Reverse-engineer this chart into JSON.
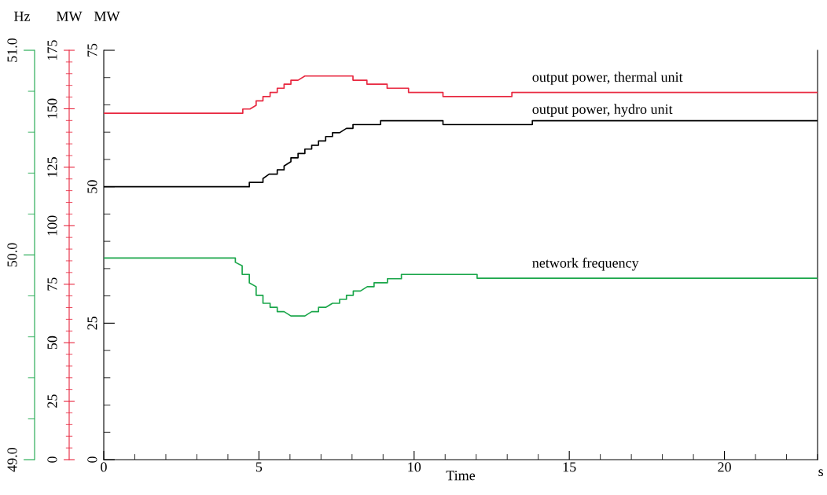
{
  "chart_data": {
    "type": "line",
    "xlabel": "Time",
    "ylabel": "MW",
    "y2label": "MW",
    "y3label": "Hz",
    "annotations": [
      "s"
    ],
    "xlim": [
      0,
      23
    ],
    "xticks": [
      0,
      5,
      10,
      15,
      20
    ],
    "ylim": [
      0,
      75
    ],
    "yticks": [
      0,
      25,
      50,
      75
    ],
    "y2lim": [
      0,
      175
    ],
    "y2ticks": [
      0,
      25,
      50,
      75,
      100,
      125,
      150,
      175
    ],
    "y3lim": [
      49,
      51
    ],
    "y3ticks": [
      {
        "value": 49,
        "label": "49.0"
      },
      {
        "value": 50,
        "label": "50.0"
      },
      {
        "value": 51,
        "label": "51.0"
      }
    ],
    "grid": false,
    "legend": false,
    "marker": "none",
    "line_style": "solid",
    "series": [
      {
        "name": "output power, thermal unit",
        "color": "#e8273f",
        "axis": "y2",
        "x": [
          0,
          4.48,
          4.48,
          4.71,
          4.91,
          4.91,
          5.13,
          5.13,
          5.36,
          5.36,
          5.59,
          5.59,
          5.81,
          5.81,
          6.03,
          6.03,
          6.26,
          6.48,
          8.03,
          8.03,
          8.48,
          8.48,
          9.13,
          9.13,
          9.82,
          9.82,
          10.93,
          10.93,
          13.15,
          13.15,
          23
        ],
        "values": [
          148.1,
          148.1,
          149.9,
          149.9,
          151.5,
          153.4,
          153.4,
          155.2,
          155.2,
          157.0,
          157.0,
          158.8,
          158.8,
          160.5,
          160.5,
          162.2,
          162.2,
          164.0,
          164.0,
          162.2,
          162.2,
          160.5,
          160.5,
          158.8,
          158.8,
          157.0,
          157.0,
          155.2,
          155.2,
          157.0,
          157.0
        ]
      },
      {
        "name": "output power, hydro unit",
        "color": "#000000",
        "axis": "y",
        "x": [
          0,
          4.69,
          4.69,
          5.13,
          5.13,
          5.33,
          5.59,
          5.59,
          5.81,
          5.81,
          6.03,
          6.03,
          6.26,
          6.26,
          6.48,
          6.48,
          6.7,
          6.7,
          6.92,
          6.92,
          7.15,
          7.15,
          7.37,
          7.37,
          7.6,
          7.82,
          8.03,
          8.03,
          8.92,
          8.92,
          10.93,
          10.93,
          13.81,
          13.81,
          23
        ],
        "values": [
          50.0,
          50.0,
          50.8,
          50.8,
          51.5,
          52.3,
          52.3,
          53.1,
          53.1,
          53.8,
          54.6,
          55.3,
          55.3,
          56.1,
          56.1,
          56.9,
          56.9,
          57.6,
          57.6,
          58.4,
          58.4,
          59.2,
          59.2,
          59.9,
          59.9,
          60.7,
          60.7,
          61.4,
          61.4,
          62.1,
          62.1,
          61.4,
          61.4,
          62.1,
          62.1
        ]
      },
      {
        "name": "network frequency",
        "color": "#1aa64a",
        "axis": "y3",
        "x": [
          0,
          4.24,
          4.24,
          4.46,
          4.46,
          4.69,
          4.69,
          4.91,
          4.91,
          5.13,
          5.13,
          5.36,
          5.36,
          5.59,
          5.59,
          5.81,
          6.03,
          6.48,
          6.7,
          6.92,
          6.92,
          7.15,
          7.37,
          7.6,
          7.6,
          7.82,
          7.82,
          8.04,
          8.04,
          8.27,
          8.49,
          8.71,
          8.71,
          9.14,
          9.14,
          9.59,
          9.59,
          12.03,
          12.03,
          23
        ],
        "values": [
          49.985,
          49.985,
          49.964,
          49.947,
          49.905,
          49.905,
          49.864,
          49.845,
          49.803,
          49.803,
          49.764,
          49.764,
          49.744,
          49.744,
          49.723,
          49.723,
          49.702,
          49.702,
          49.723,
          49.723,
          49.744,
          49.744,
          49.764,
          49.764,
          49.783,
          49.783,
          49.803,
          49.803,
          49.824,
          49.824,
          49.845,
          49.845,
          49.864,
          49.864,
          49.884,
          49.884,
          49.905,
          49.905,
          49.886,
          49.886
        ]
      }
    ]
  }
}
